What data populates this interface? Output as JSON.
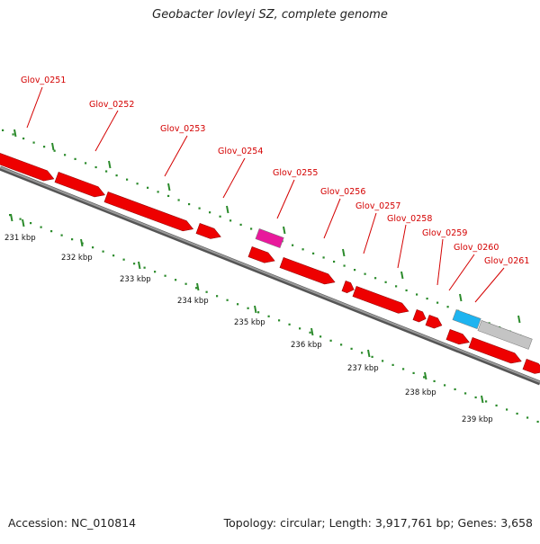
{
  "title": "Geobacter lovleyi SZ, complete genome",
  "footer": {
    "accession": "Accession: NC_010814",
    "summary": "Topology: circular; Length: 3,917,761 bp; Genes: 3,658"
  },
  "colors": {
    "gene": "#ee0000",
    "gene_highlight": "#e8199c",
    "gene_blue": "#1eb4f0",
    "gene_gray": "#c4c4c4",
    "backbone": "#7a7a7a",
    "label": "#d40000",
    "tick": "#2a8a2a"
  },
  "gene_labels": [
    "Glov_0251",
    "Glov_0252",
    "Glov_0253",
    "Glov_0254",
    "Glov_0255",
    "Glov_0256",
    "Glov_0257",
    "Glov_0258",
    "Glov_0259",
    "Glov_0260",
    "Glov_0261"
  ],
  "scale_labels": [
    "231 kbp",
    "232 kbp",
    "233 kbp",
    "234 kbp",
    "235 kbp",
    "236 kbp",
    "237 kbp",
    "238 kbp",
    "239 kbp"
  ]
}
